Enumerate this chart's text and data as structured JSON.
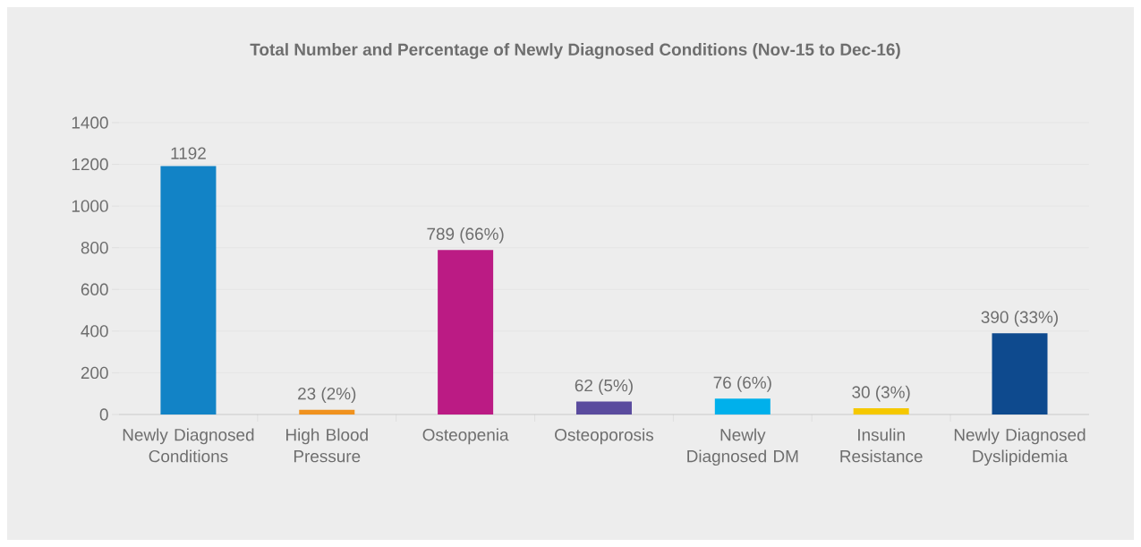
{
  "chart_data": {
    "type": "bar",
    "title": "Total Number and Percentage of Newly Diagnosed Conditions (Nov-15 to Dec-16)",
    "categories": [
      "Newly Diagnosed Conditions",
      "High Blood Pressure",
      "Osteopenia",
      "Osteoporosis",
      "Newly Diagnosed DM",
      "Insulin Resistance",
      "Newly Diagnosed Dyslipidemia"
    ],
    "values": [
      1192,
      23,
      789,
      62,
      76,
      30,
      390
    ],
    "colors": [
      "#1283c6",
      "#f0921e",
      "#bb1b84",
      "#5a4b9e",
      "#00b0eb",
      "#f5c800",
      "#0e4a8e"
    ],
    "value_labels": [
      "1192",
      "23  (2%)",
      "789  (66%)",
      "62  (5%)",
      "76  (6%)",
      "30  (3%)",
      "390  (33%)"
    ],
    "ylim": [
      0,
      1400
    ],
    "yticks": [
      0,
      200,
      400,
      600,
      800,
      1000,
      1200,
      1400
    ],
    "grid": "y"
  }
}
